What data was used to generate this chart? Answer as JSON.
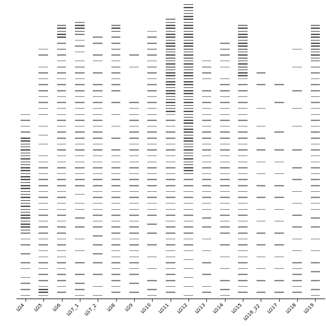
{
  "linkage_groups": [
    "LG4",
    "LG5",
    "LG6",
    "LG7_1",
    "LG7_2",
    "LG8",
    "LG9",
    "LG10",
    "LG11",
    "LG12",
    "LG13",
    "LG14",
    "LG15",
    "LG16_22",
    "LG17",
    "LG18",
    "LG19"
  ],
  "bg_color": "#ffffff",
  "bar_color": "#000000",
  "label_fontsize": 5.2,
  "label_rotation": 45,
  "figure_width": 4.74,
  "figure_height": 4.74,
  "dpi": 100,
  "snp_data": {
    "LG4": [
      0.38,
      0.4,
      0.42,
      0.44,
      0.46,
      0.47,
      0.48,
      0.49,
      0.5,
      0.51,
      0.52,
      0.53,
      0.54,
      0.55,
      0.56,
      0.57,
      0.58,
      0.59,
      0.6,
      0.61,
      0.62,
      0.63,
      0.64,
      0.65,
      0.66,
      0.67,
      0.68,
      0.69,
      0.7,
      0.71,
      0.72,
      0.73,
      0.74,
      0.75,
      0.76,
      0.77,
      0.78,
      0.8,
      0.82,
      0.85,
      0.88,
      0.9,
      0.93,
      0.95,
      0.97,
      0.99
    ],
    "LG5": [
      0.16,
      0.18,
      0.22,
      0.24,
      0.26,
      0.28,
      0.3,
      0.32,
      0.34,
      0.36,
      0.38,
      0.42,
      0.45,
      0.48,
      0.52,
      0.54,
      0.56,
      0.58,
      0.6,
      0.62,
      0.64,
      0.66,
      0.68,
      0.7,
      0.72,
      0.74,
      0.76,
      0.78,
      0.8,
      0.82,
      0.84,
      0.86,
      0.88,
      0.9,
      0.92,
      0.94,
      0.96,
      0.97,
      0.98,
      0.99
    ],
    "LG6": [
      0.08,
      0.09,
      0.1,
      0.11,
      0.12,
      0.14,
      0.16,
      0.18,
      0.2,
      0.22,
      0.24,
      0.26,
      0.28,
      0.3,
      0.32,
      0.34,
      0.36,
      0.38,
      0.4,
      0.42,
      0.44,
      0.46,
      0.48,
      0.5,
      0.52,
      0.54,
      0.56,
      0.58,
      0.6,
      0.62,
      0.64,
      0.66,
      0.68,
      0.7,
      0.72,
      0.74,
      0.76,
      0.78,
      0.8,
      0.82,
      0.84,
      0.86,
      0.88,
      0.9,
      0.92,
      0.94,
      0.96,
      0.98
    ],
    "LG7_1": [
      0.07,
      0.08,
      0.09,
      0.1,
      0.11,
      0.13,
      0.15,
      0.17,
      0.2,
      0.22,
      0.24,
      0.26,
      0.28,
      0.3,
      0.32,
      0.34,
      0.36,
      0.38,
      0.4,
      0.42,
      0.44,
      0.46,
      0.48,
      0.5,
      0.52,
      0.54,
      0.56,
      0.58,
      0.6,
      0.62,
      0.65,
      0.68,
      0.7,
      0.73,
      0.76,
      0.8,
      0.84,
      0.88,
      0.92,
      0.95,
      0.97,
      0.99
    ],
    "LG7_2": [
      0.12,
      0.14,
      0.18,
      0.2,
      0.24,
      0.28,
      0.3,
      0.32,
      0.34,
      0.36,
      0.38,
      0.4,
      0.42,
      0.44,
      0.46,
      0.48,
      0.5,
      0.52,
      0.54,
      0.56,
      0.58,
      0.6,
      0.62,
      0.64,
      0.66,
      0.68,
      0.7,
      0.72,
      0.74,
      0.76,
      0.79,
      0.82,
      0.85,
      0.88,
      0.92,
      0.96,
      0.99
    ],
    "LG8": [
      0.08,
      0.09,
      0.1,
      0.12,
      0.14,
      0.16,
      0.18,
      0.2,
      0.22,
      0.24,
      0.26,
      0.28,
      0.3,
      0.34,
      0.38,
      0.42,
      0.46,
      0.5,
      0.52,
      0.54,
      0.56,
      0.58,
      0.6,
      0.62,
      0.64,
      0.66,
      0.68,
      0.7,
      0.72,
      0.74,
      0.76,
      0.78,
      0.8,
      0.82,
      0.84,
      0.86,
      0.88,
      0.9,
      0.92,
      0.94,
      0.96,
      0.98
    ],
    "LG9": [
      0.18,
      0.22,
      0.34,
      0.36,
      0.38,
      0.4,
      0.42,
      0.44,
      0.46,
      0.48,
      0.5,
      0.52,
      0.54,
      0.56,
      0.58,
      0.6,
      0.62,
      0.64,
      0.66,
      0.68,
      0.7,
      0.72,
      0.74,
      0.76,
      0.78,
      0.8,
      0.82,
      0.84,
      0.86,
      0.88,
      0.9,
      0.92,
      0.95,
      0.98
    ],
    "LG10": [
      0.1,
      0.12,
      0.14,
      0.16,
      0.18,
      0.2,
      0.22,
      0.24,
      0.26,
      0.28,
      0.3,
      0.32,
      0.34,
      0.36,
      0.38,
      0.4,
      0.42,
      0.44,
      0.46,
      0.48,
      0.5,
      0.52,
      0.54,
      0.56,
      0.58,
      0.6,
      0.62,
      0.64,
      0.66,
      0.68,
      0.7,
      0.72,
      0.75,
      0.78,
      0.82,
      0.86,
      0.9,
      0.94,
      0.97,
      0.99
    ],
    "LG11": [
      0.06,
      0.07,
      0.08,
      0.09,
      0.1,
      0.11,
      0.12,
      0.13,
      0.14,
      0.15,
      0.16,
      0.17,
      0.18,
      0.19,
      0.2,
      0.21,
      0.22,
      0.23,
      0.24,
      0.25,
      0.26,
      0.27,
      0.28,
      0.29,
      0.3,
      0.31,
      0.32,
      0.33,
      0.34,
      0.35,
      0.36,
      0.37,
      0.38,
      0.4,
      0.42,
      0.44,
      0.46,
      0.48,
      0.5,
      0.52,
      0.54,
      0.56,
      0.58,
      0.6,
      0.62,
      0.64,
      0.66,
      0.68,
      0.7,
      0.72,
      0.74,
      0.76,
      0.78,
      0.8,
      0.82,
      0.84,
      0.86,
      0.88,
      0.9,
      0.92,
      0.94,
      0.96,
      0.98
    ],
    "LG12": [
      0.01,
      0.02,
      0.03,
      0.04,
      0.05,
      0.06,
      0.07,
      0.08,
      0.09,
      0.1,
      0.11,
      0.12,
      0.13,
      0.14,
      0.15,
      0.16,
      0.17,
      0.18,
      0.19,
      0.2,
      0.21,
      0.22,
      0.23,
      0.24,
      0.25,
      0.26,
      0.27,
      0.28,
      0.29,
      0.3,
      0.31,
      0.32,
      0.33,
      0.34,
      0.35,
      0.36,
      0.37,
      0.38,
      0.39,
      0.4,
      0.41,
      0.42,
      0.43,
      0.44,
      0.45,
      0.46,
      0.47,
      0.48,
      0.49,
      0.5,
      0.51,
      0.52,
      0.53,
      0.54,
      0.55,
      0.56,
      0.57,
      0.58,
      0.6,
      0.62,
      0.64,
      0.66,
      0.68,
      0.7,
      0.72,
      0.74,
      0.76,
      0.78,
      0.8,
      0.82,
      0.84,
      0.87,
      0.9,
      0.93,
      0.96,
      0.99
    ],
    "LG13": [
      0.2,
      0.22,
      0.24,
      0.26,
      0.3,
      0.32,
      0.34,
      0.36,
      0.38,
      0.4,
      0.42,
      0.44,
      0.46,
      0.48,
      0.5,
      0.52,
      0.54,
      0.56,
      0.58,
      0.6,
      0.62,
      0.64,
      0.66,
      0.68,
      0.7,
      0.73,
      0.76,
      0.8,
      0.84,
      0.88,
      0.92,
      0.96,
      0.98
    ],
    "LG14": [
      0.14,
      0.16,
      0.18,
      0.2,
      0.22,
      0.26,
      0.28,
      0.3,
      0.32,
      0.34,
      0.36,
      0.38,
      0.4,
      0.42,
      0.44,
      0.46,
      0.48,
      0.5,
      0.52,
      0.54,
      0.56,
      0.58,
      0.6,
      0.62,
      0.64,
      0.66,
      0.68,
      0.7,
      0.72,
      0.74,
      0.76,
      0.78,
      0.82,
      0.86,
      0.9,
      0.94,
      0.97,
      0.99
    ],
    "LG15": [
      0.08,
      0.09,
      0.1,
      0.11,
      0.12,
      0.13,
      0.14,
      0.15,
      0.16,
      0.17,
      0.18,
      0.19,
      0.2,
      0.21,
      0.22,
      0.23,
      0.24,
      0.25,
      0.26,
      0.28,
      0.3,
      0.32,
      0.34,
      0.36,
      0.38,
      0.4,
      0.42,
      0.44,
      0.46,
      0.48,
      0.5,
      0.52,
      0.54,
      0.56,
      0.58,
      0.6,
      0.62,
      0.64,
      0.66,
      0.68,
      0.7,
      0.72,
      0.74,
      0.76,
      0.78,
      0.8,
      0.82,
      0.84,
      0.86,
      0.88,
      0.9,
      0.92,
      0.94,
      0.96,
      0.98
    ],
    "LG16_22": [
      0.24,
      0.28,
      0.36,
      0.42,
      0.46,
      0.5,
      0.54,
      0.58,
      0.62,
      0.66,
      0.7,
      0.74,
      0.78,
      0.82,
      0.86,
      0.9,
      0.94,
      0.98
    ],
    "LG17": [
      0.28,
      0.34,
      0.44,
      0.5,
      0.54,
      0.58,
      0.62,
      0.66,
      0.7,
      0.74,
      0.78,
      0.82,
      0.86,
      0.9,
      0.94,
      0.98
    ],
    "LG18": [
      0.16,
      0.22,
      0.3,
      0.36,
      0.42,
      0.5,
      0.56,
      0.6,
      0.64,
      0.68,
      0.72,
      0.76,
      0.8,
      0.84,
      0.88,
      0.9,
      0.92,
      0.94,
      0.96,
      0.98
    ],
    "LG19": [
      0.08,
      0.09,
      0.1,
      0.11,
      0.12,
      0.13,
      0.14,
      0.15,
      0.16,
      0.17,
      0.18,
      0.19,
      0.2,
      0.22,
      0.24,
      0.26,
      0.28,
      0.3,
      0.32,
      0.34,
      0.36,
      0.38,
      0.4,
      0.42,
      0.44,
      0.46,
      0.48,
      0.5,
      0.52,
      0.54,
      0.56,
      0.58,
      0.6,
      0.62,
      0.64,
      0.66,
      0.68,
      0.7,
      0.73,
      0.76,
      0.8,
      0.84,
      0.88,
      0.91,
      0.94,
      0.97,
      0.99
    ]
  }
}
